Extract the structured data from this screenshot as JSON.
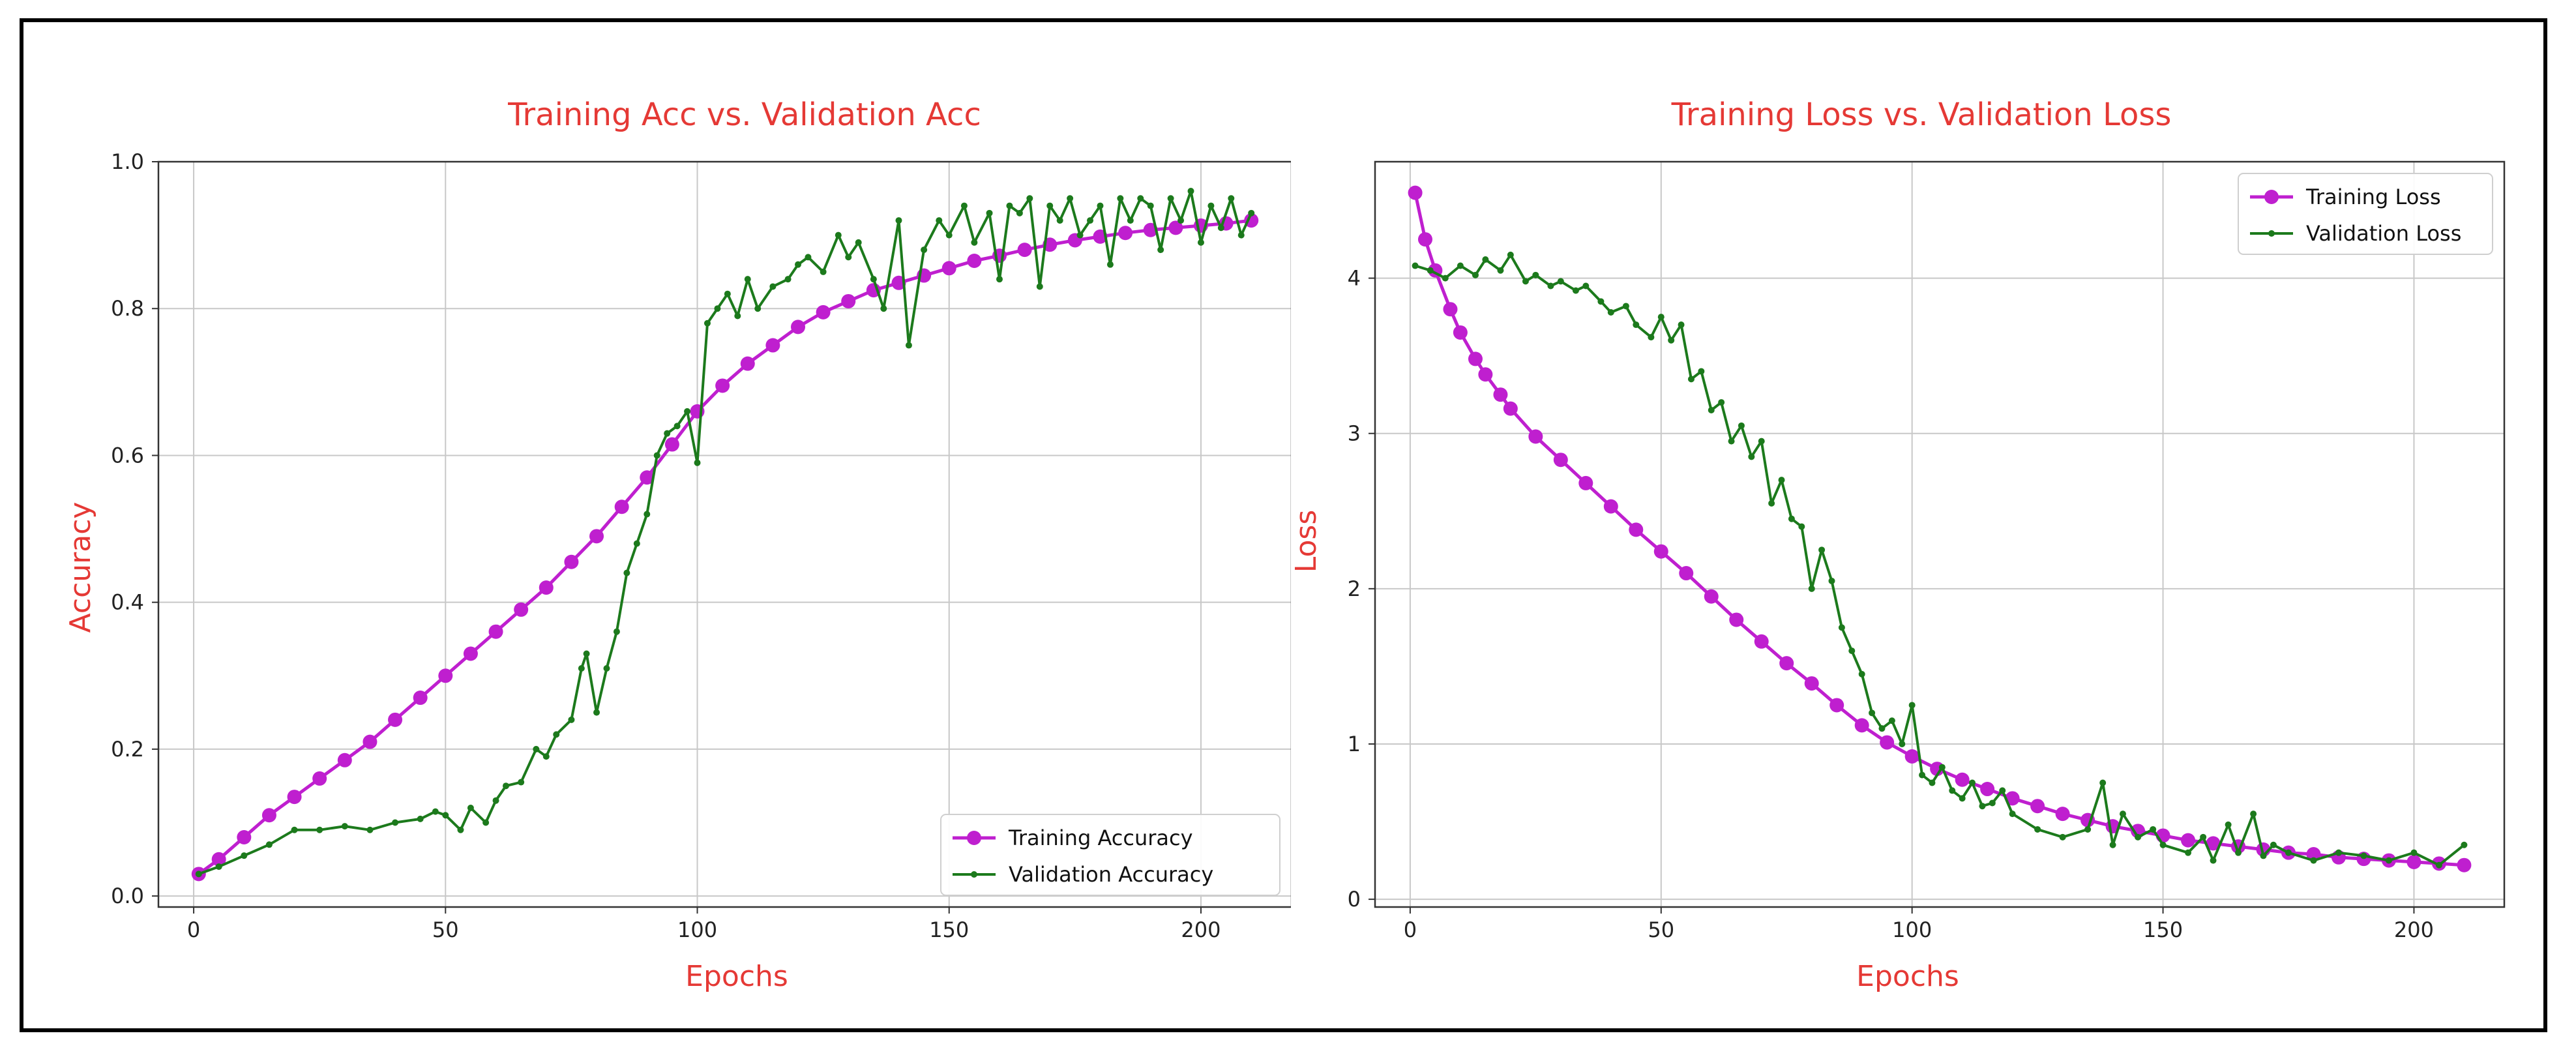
{
  "colors": {
    "training": "#bf1fcf",
    "validation": "#1c7a1c",
    "title": "#e53935"
  },
  "chart_data": [
    {
      "type": "line",
      "title": "Training Acc vs. Validation Acc",
      "xlabel": "Epochs",
      "ylabel": "Accuracy",
      "xlim": [
        -7,
        218
      ],
      "ylim": [
        -0.015,
        1.0
      ],
      "xticks": [
        0,
        50,
        100,
        150,
        200
      ],
      "yticks": [
        0.0,
        0.2,
        0.4,
        0.6,
        0.8,
        1.0
      ],
      "ytick_labels": [
        "0.0",
        "0.2",
        "0.4",
        "0.6",
        "0.8",
        "1.0"
      ],
      "grid": true,
      "legend_position": "lower-right",
      "series": [
        {
          "name": "Training Accuracy",
          "x": [
            1,
            5,
            10,
            15,
            20,
            25,
            30,
            35,
            40,
            45,
            50,
            55,
            60,
            65,
            70,
            75,
            80,
            85,
            90,
            95,
            100,
            105,
            110,
            115,
            120,
            125,
            130,
            135,
            140,
            145,
            150,
            155,
            160,
            165,
            170,
            175,
            180,
            185,
            190,
            195,
            200,
            205,
            210
          ],
          "y": [
            0.03,
            0.05,
            0.08,
            0.11,
            0.135,
            0.16,
            0.185,
            0.21,
            0.24,
            0.27,
            0.3,
            0.33,
            0.36,
            0.39,
            0.42,
            0.455,
            0.49,
            0.53,
            0.57,
            0.615,
            0.66,
            0.695,
            0.725,
            0.75,
            0.775,
            0.795,
            0.81,
            0.825,
            0.835,
            0.845,
            0.855,
            0.865,
            0.872,
            0.88,
            0.887,
            0.893,
            0.898,
            0.903,
            0.907,
            0.91,
            0.913,
            0.916,
            0.92
          ]
        },
        {
          "name": "Validation Accuracy",
          "x": [
            1,
            5,
            10,
            15,
            20,
            25,
            30,
            35,
            40,
            45,
            48,
            50,
            53,
            55,
            58,
            60,
            62,
            65,
            68,
            70,
            72,
            75,
            77,
            78,
            80,
            82,
            84,
            86,
            88,
            90,
            92,
            94,
            96,
            98,
            100,
            102,
            104,
            106,
            108,
            110,
            112,
            115,
            118,
            120,
            122,
            125,
            128,
            130,
            132,
            135,
            137,
            140,
            142,
            145,
            148,
            150,
            153,
            155,
            158,
            160,
            162,
            164,
            166,
            168,
            170,
            172,
            174,
            176,
            178,
            180,
            182,
            184,
            186,
            188,
            190,
            192,
            194,
            196,
            198,
            200,
            202,
            204,
            206,
            208,
            210
          ],
          "y": [
            0.03,
            0.04,
            0.055,
            0.07,
            0.09,
            0.09,
            0.095,
            0.09,
            0.1,
            0.105,
            0.115,
            0.11,
            0.09,
            0.12,
            0.1,
            0.13,
            0.15,
            0.155,
            0.2,
            0.19,
            0.22,
            0.24,
            0.31,
            0.33,
            0.25,
            0.31,
            0.36,
            0.44,
            0.48,
            0.52,
            0.6,
            0.63,
            0.64,
            0.66,
            0.59,
            0.78,
            0.8,
            0.82,
            0.79,
            0.84,
            0.8,
            0.83,
            0.84,
            0.86,
            0.87,
            0.85,
            0.9,
            0.87,
            0.89,
            0.84,
            0.8,
            0.92,
            0.75,
            0.88,
            0.92,
            0.9,
            0.94,
            0.89,
            0.93,
            0.84,
            0.94,
            0.93,
            0.95,
            0.83,
            0.94,
            0.92,
            0.95,
            0.9,
            0.92,
            0.94,
            0.86,
            0.95,
            0.92,
            0.95,
            0.94,
            0.88,
            0.95,
            0.92,
            0.96,
            0.89,
            0.94,
            0.91,
            0.95,
            0.9,
            0.93
          ]
        }
      ]
    },
    {
      "type": "line",
      "title": "Training Loss vs. Validation Loss",
      "xlabel": "Epochs",
      "ylabel": "Loss",
      "xlim": [
        -7,
        218
      ],
      "ylim": [
        -0.05,
        4.75
      ],
      "xticks": [
        0,
        50,
        100,
        150,
        200
      ],
      "yticks": [
        0,
        1,
        2,
        3,
        4
      ],
      "ytick_labels": [
        "0",
        "1",
        "2",
        "3",
        "4"
      ],
      "grid": true,
      "legend_position": "top-right",
      "series": [
        {
          "name": "Training Loss",
          "x": [
            1,
            3,
            5,
            8,
            10,
            13,
            15,
            18,
            20,
            25,
            30,
            35,
            40,
            45,
            50,
            55,
            60,
            65,
            70,
            75,
            80,
            85,
            90,
            95,
            100,
            105,
            110,
            115,
            120,
            125,
            130,
            135,
            140,
            145,
            150,
            155,
            160,
            165,
            170,
            175,
            180,
            185,
            190,
            195,
            200,
            205,
            210
          ],
          "y": [
            4.55,
            4.25,
            4.05,
            3.8,
            3.65,
            3.48,
            3.38,
            3.25,
            3.16,
            2.98,
            2.83,
            2.68,
            2.53,
            2.38,
            2.24,
            2.1,
            1.95,
            1.8,
            1.66,
            1.52,
            1.39,
            1.25,
            1.12,
            1.01,
            0.92,
            0.84,
            0.77,
            0.71,
            0.65,
            0.6,
            0.55,
            0.51,
            0.47,
            0.44,
            0.41,
            0.38,
            0.36,
            0.34,
            0.32,
            0.3,
            0.29,
            0.27,
            0.26,
            0.25,
            0.24,
            0.23,
            0.22
          ]
        },
        {
          "name": "Validation Loss",
          "x": [
            1,
            4,
            7,
            10,
            13,
            15,
            18,
            20,
            23,
            25,
            28,
            30,
            33,
            35,
            38,
            40,
            43,
            45,
            48,
            50,
            52,
            54,
            56,
            58,
            60,
            62,
            64,
            66,
            68,
            70,
            72,
            74,
            76,
            78,
            80,
            82,
            84,
            86,
            88,
            90,
            92,
            94,
            96,
            98,
            100,
            102,
            104,
            106,
            108,
            110,
            112,
            114,
            116,
            118,
            120,
            125,
            130,
            135,
            138,
            140,
            142,
            145,
            148,
            150,
            155,
            158,
            160,
            163,
            165,
            168,
            170,
            172,
            175,
            180,
            185,
            190,
            195,
            200,
            205,
            210
          ],
          "y": [
            4.08,
            4.05,
            4.0,
            4.08,
            4.02,
            4.12,
            4.05,
            4.15,
            3.98,
            4.02,
            3.95,
            3.98,
            3.92,
            3.95,
            3.85,
            3.78,
            3.82,
            3.7,
            3.62,
            3.75,
            3.6,
            3.7,
            3.35,
            3.4,
            3.15,
            3.2,
            2.95,
            3.05,
            2.85,
            2.95,
            2.55,
            2.7,
            2.45,
            2.4,
            2.0,
            2.25,
            2.05,
            1.75,
            1.6,
            1.45,
            1.2,
            1.1,
            1.15,
            1.0,
            1.25,
            0.8,
            0.75,
            0.85,
            0.7,
            0.65,
            0.75,
            0.6,
            0.62,
            0.7,
            0.55,
            0.45,
            0.4,
            0.45,
            0.75,
            0.35,
            0.55,
            0.4,
            0.45,
            0.35,
            0.3,
            0.4,
            0.25,
            0.48,
            0.3,
            0.55,
            0.28,
            0.35,
            0.3,
            0.25,
            0.3,
            0.28,
            0.25,
            0.3,
            0.22,
            0.35
          ]
        }
      ]
    }
  ]
}
